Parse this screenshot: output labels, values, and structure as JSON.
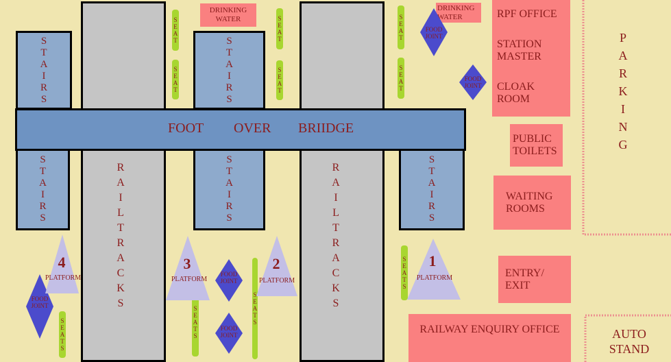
{
  "labels": {
    "foot_over_bridge": [
      "FOOT",
      "OVER",
      "BRIIDGE"
    ],
    "stairs": "STAIRS",
    "rail_tracks_1": "RAIL",
    "rail_tracks_2": "TRACKS",
    "seats": "SEATS",
    "seat": "SEAT",
    "food_joint_1": "FOOD",
    "food_joint_2": "JOINT",
    "platform": "PLATFORM",
    "drinking_water_1": "DRINKING",
    "drinking_water_2": "WATER",
    "parking": "PARKING"
  },
  "platform_numbers": [
    "1",
    "2",
    "3",
    "4"
  ],
  "rooms": {
    "rpf_office": "RPF OFFICE",
    "station_master_1": "STATION",
    "station_master_2": "MASTER",
    "cloak_room_1": "CLOAK",
    "cloak_room_2": "ROOM",
    "public_toilets_1": "PUBLIC",
    "public_toilets_2": "TOILETS",
    "waiting_rooms_1": "WAITING",
    "waiting_rooms_2": "ROOMS",
    "entry_exit_1": "ENTRY/",
    "entry_exit_2": "EXIT",
    "railway_enquiry": "RAILWAY ENQUIRY OFFICE",
    "auto_stand_1": "AUTO",
    "auto_stand_2": "STAND"
  },
  "colors": {
    "background": "#f0e6b0",
    "track": "#c5c5c5",
    "stairs": "#8eaacc",
    "bridge": "#6e93c2",
    "room": "#fa8080",
    "seat": "#a8d630",
    "food_joint": "#4b4bcc",
    "platform": "#c3bfe6",
    "text": "#8b1c1c"
  }
}
